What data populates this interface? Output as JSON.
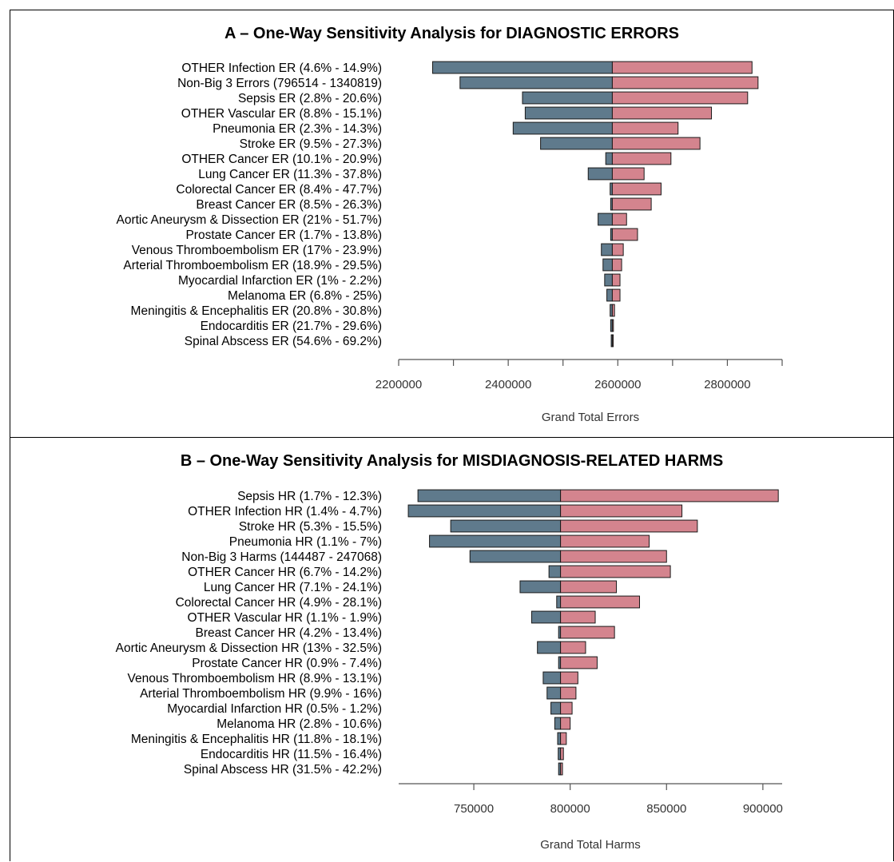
{
  "colors": {
    "low": "#5f7a8c",
    "high": "#d4848e",
    "edge": "#1a1a1a",
    "axis": "#555555"
  },
  "chart_data": [
    {
      "type": "bar",
      "title": "A – One-Way Sensitivity Analysis for DIAGNOSTIC ERRORS",
      "xlabel": "Grand Total Errors",
      "ylabel": "",
      "base": 2590000,
      "xlim": [
        2200000,
        2900000
      ],
      "xticks": [
        2200000,
        2300000,
        2400000,
        2500000,
        2600000,
        2700000,
        2800000,
        2900000
      ],
      "xtick_labels": [
        "2200000",
        "",
        "2400000",
        "",
        "2600000",
        "",
        "2800000",
        ""
      ],
      "categories": [
        "OTHER Infection ER (4.6% - 14.9%)",
        "Non-Big 3 Errors (796514 - 1340819)",
        "Sepsis ER (2.8% - 20.6%)",
        "OTHER Vascular ER (8.8% - 15.1%)",
        "Pneumonia ER (2.3% - 14.3%)",
        "Stroke ER (9.5% - 27.3%)",
        "OTHER Cancer ER (10.1% - 20.9%)",
        "Lung Cancer ER (11.3% - 37.8%)",
        "Colorectal Cancer ER (8.4% - 47.7%)",
        "Breast Cancer ER (8.5% - 26.3%)",
        "Aortic Aneurysm & Dissection ER (21% - 51.7%)",
        "Prostate Cancer ER (1.7% - 13.8%)",
        "Venous Thromboembolism ER (17% - 23.9%)",
        "Arterial Thromboembolism ER (18.9% - 29.5%)",
        "Myocardial Infarction ER (1% - 2.2%)",
        "Melanoma ER (6.8% - 25%)",
        "Meningitis & Encephalitis ER (20.8% - 30.8%)",
        "Endocarditis ER (21.7% - 29.6%)",
        "Spinal Abscess ER (54.6% - 69.2%)"
      ],
      "series": [
        {
          "name": "",
          "values": [
            2262000,
            2312000,
            2426000,
            2431000,
            2409000,
            2459000,
            2578000,
            2546000,
            2586000,
            2587000,
            2564000,
            2587000,
            2570000,
            2573000,
            2576000,
            2580000,
            2586000,
            2587000,
            2588000
          ]
        },
        {
          "name": "",
          "values": [
            2845000,
            2856000,
            2837000,
            2771000,
            2710000,
            2750000,
            2697000,
            2648000,
            2679000,
            2661000,
            2616000,
            2636000,
            2610000,
            2607000,
            2604000,
            2604000,
            2594000,
            2592000,
            2591000
          ]
        }
      ]
    },
    {
      "type": "bar",
      "title": "B – One-Way Sensitivity Analysis for MISDIAGNOSIS-RELATED HARMS",
      "xlabel": "Grand Total Harms",
      "ylabel": "",
      "base": 795000,
      "xlim": [
        711000,
        910000
      ],
      "xticks": [
        750000,
        800000,
        850000,
        900000
      ],
      "xtick_labels": [
        "750000",
        "800000",
        "850000",
        "900000"
      ],
      "categories": [
        "Sepsis HR (1.7% - 12.3%)",
        "OTHER Infection HR (1.4% - 4.7%)",
        "Stroke HR (5.3% - 15.5%)",
        "Pneumonia HR (1.1% - 7%)",
        "Non-Big 3 Harms (144487 - 247068)",
        "OTHER Cancer HR (6.7% - 14.2%)",
        "Lung Cancer HR (7.1% - 24.1%)",
        "Colorectal Cancer HR (4.9% - 28.1%)",
        "OTHER Vascular HR (1.1% - 1.9%)",
        "Breast Cancer HR (4.2% - 13.4%)",
        "Aortic Aneurysm & Dissection HR (13% - 32.5%)",
        "Prostate Cancer HR (0.9% - 7.4%)",
        "Venous Thromboembolism HR (8.9% - 13.1%)",
        "Arterial Thromboembolism HR (9.9% - 16%)",
        "Myocardial Infarction HR (0.5% - 1.2%)",
        "Melanoma HR (2.8% - 10.6%)",
        "Meningitis & Encephalitis HR (11.8% - 18.1%)",
        "Endocarditis HR (11.5% - 16.4%)",
        "Spinal Abscess HR (31.5% - 42.2%)"
      ],
      "series": [
        {
          "name": "",
          "values": [
            721000,
            716000,
            738000,
            727000,
            748000,
            789000,
            774000,
            793000,
            780000,
            794000,
            783000,
            794000,
            786000,
            788000,
            790000,
            792000,
            793500,
            793800,
            794000
          ]
        },
        {
          "name": "",
          "values": [
            908000,
            858000,
            866000,
            841000,
            850000,
            852000,
            824000,
            836000,
            813000,
            823000,
            808000,
            814000,
            804000,
            803000,
            801000,
            800000,
            798000,
            796500,
            796000
          ]
        }
      ]
    }
  ]
}
